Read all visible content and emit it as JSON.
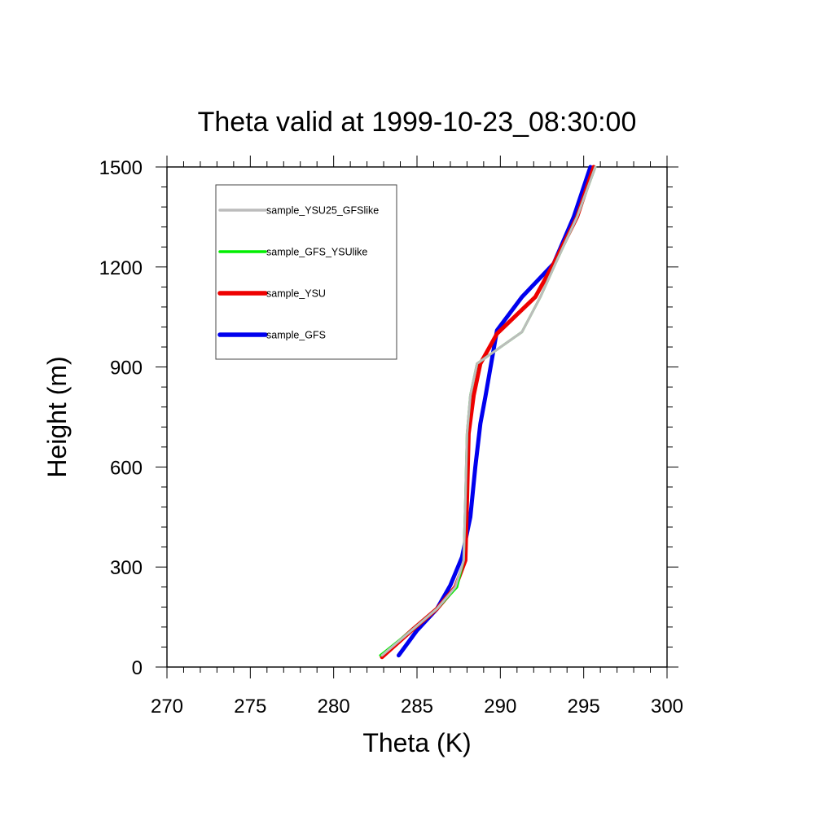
{
  "chart_data": {
    "type": "line",
    "title": "Theta valid at 1999-10-23_08:30:00",
    "xlabel": "Theta (K)",
    "ylabel": "Height (m)",
    "xlim": [
      270,
      300
    ],
    "ylim": [
      0,
      1500
    ],
    "xticks": [
      270,
      275,
      280,
      285,
      290,
      295,
      300
    ],
    "yticks": [
      0,
      300,
      600,
      900,
      1200,
      1500
    ],
    "grid": false,
    "legend_placement": "top-left",
    "series": [
      {
        "name": "sample_YSU25_GFSlike",
        "color": "#bcbcbc",
        "points": [
          [
            282.9,
            35
          ],
          [
            284.8,
            115
          ],
          [
            286.2,
            175
          ],
          [
            287.3,
            240
          ],
          [
            287.8,
            320
          ],
          [
            287.9,
            500
          ],
          [
            288.0,
            700
          ],
          [
            288.2,
            815
          ],
          [
            288.6,
            910
          ],
          [
            291.3,
            1005
          ],
          [
            292.4,
            1110
          ],
          [
            293.3,
            1210
          ],
          [
            294.6,
            1350
          ],
          [
            295.7,
            1500
          ]
        ]
      },
      {
        "name": "sample_GFS_YSUlike",
        "color": "#00ee00",
        "points": [
          [
            282.8,
            35
          ],
          [
            284.8,
            115
          ],
          [
            286.2,
            175
          ],
          [
            287.4,
            240
          ],
          [
            287.8,
            320
          ],
          [
            287.9,
            500
          ],
          [
            288.0,
            700
          ],
          [
            288.2,
            815
          ],
          [
            288.6,
            910
          ],
          [
            291.3,
            1005
          ],
          [
            292.4,
            1110
          ],
          [
            293.3,
            1210
          ],
          [
            294.6,
            1350
          ],
          [
            295.7,
            1500
          ]
        ]
      },
      {
        "name": "sample_YSU",
        "color": "#ee0000",
        "points": [
          [
            282.9,
            30
          ],
          [
            284.8,
            115
          ],
          [
            286.2,
            175
          ],
          [
            287.3,
            240
          ],
          [
            287.9,
            320
          ],
          [
            288.0,
            500
          ],
          [
            288.1,
            700
          ],
          [
            288.4,
            815
          ],
          [
            288.8,
            910
          ],
          [
            289.8,
            1000
          ],
          [
            292.1,
            1110
          ],
          [
            293.2,
            1210
          ],
          [
            294.6,
            1350
          ],
          [
            295.6,
            1500
          ]
        ]
      },
      {
        "name": "sample_GFS",
        "color": "#0000ee",
        "points": [
          [
            283.9,
            35
          ],
          [
            285.0,
            110
          ],
          [
            286.2,
            175
          ],
          [
            287.0,
            245
          ],
          [
            287.7,
            330
          ],
          [
            288.2,
            450
          ],
          [
            288.5,
            600
          ],
          [
            288.8,
            730
          ],
          [
            289.1,
            810
          ],
          [
            289.8,
            1010
          ],
          [
            291.3,
            1110
          ],
          [
            293.2,
            1210
          ],
          [
            294.4,
            1350
          ],
          [
            295.4,
            1500
          ]
        ]
      }
    ]
  }
}
